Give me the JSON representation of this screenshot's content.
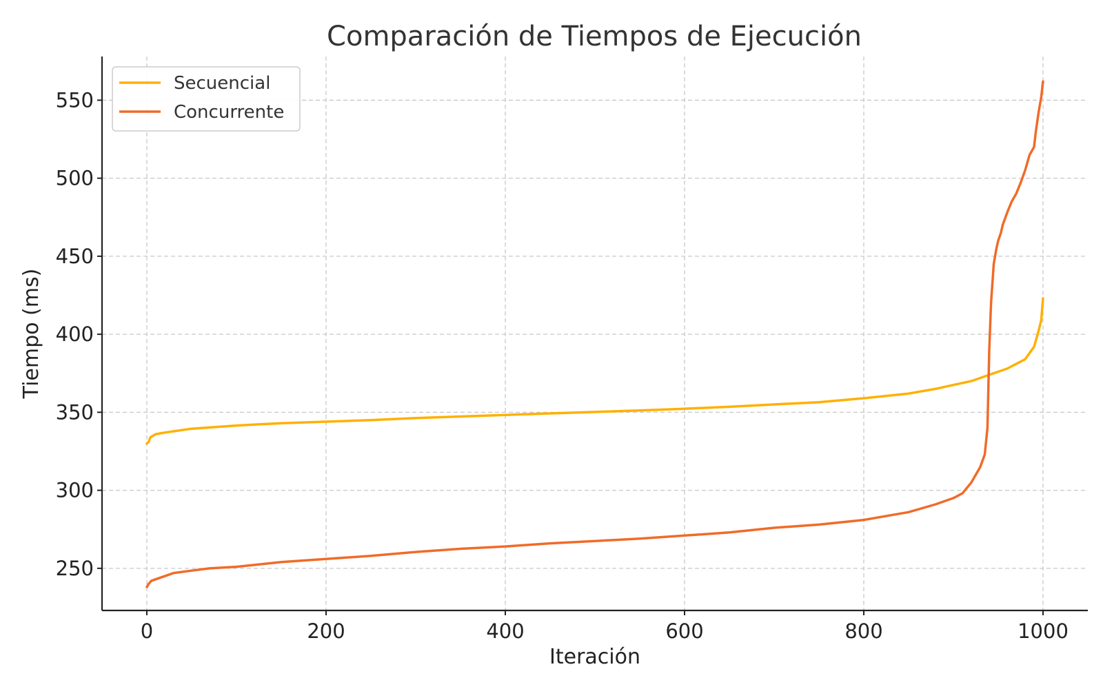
{
  "chart_data": {
    "type": "line",
    "title": "Comparación de Tiempos de Ejecución",
    "xlabel": "Iteración",
    "ylabel": "Tiempo (ms)",
    "xlim": [
      -50,
      1050
    ],
    "ylim": [
      223,
      578
    ],
    "xticks": [
      0,
      200,
      400,
      600,
      800,
      1000
    ],
    "yticks": [
      250,
      300,
      350,
      400,
      450,
      500,
      550
    ],
    "grid": true,
    "legend_position": "top-left",
    "series": [
      {
        "name": "Secuencial",
        "color": "#FFB000",
        "x": [
          0,
          2,
          4,
          10,
          20,
          50,
          100,
          150,
          200,
          250,
          300,
          350,
          400,
          450,
          500,
          550,
          600,
          650,
          700,
          750,
          800,
          850,
          880,
          900,
          920,
          940,
          960,
          970,
          980,
          990,
          995,
          998,
          1000
        ],
        "y": [
          330,
          331,
          334,
          336,
          337,
          339.5,
          341.5,
          343,
          344,
          345,
          346.3,
          347.3,
          348.3,
          349.3,
          350.2,
          351.2,
          352.3,
          353.5,
          355,
          356.5,
          359,
          362,
          365,
          367.5,
          370,
          374,
          378,
          381,
          384,
          392,
          402,
          409,
          423
        ]
      },
      {
        "name": "Concurrente",
        "color": "#F06B28",
        "x": [
          0,
          2,
          5,
          10,
          20,
          30,
          50,
          70,
          100,
          150,
          200,
          250,
          300,
          350,
          400,
          450,
          500,
          550,
          600,
          650,
          700,
          750,
          800,
          850,
          880,
          900,
          910,
          920,
          930,
          935,
          938,
          940,
          942,
          945,
          948,
          950,
          953,
          955,
          960,
          965,
          970,
          975,
          980,
          985,
          990,
          992,
          995,
          998,
          1000
        ],
        "y": [
          238,
          240,
          242,
          243,
          245,
          247,
          248.5,
          250,
          251,
          254,
          256,
          258,
          260.5,
          262.5,
          264,
          266,
          267.5,
          269,
          271,
          273,
          276,
          278,
          281,
          286,
          291,
          295,
          298,
          305,
          315,
          323,
          340,
          390,
          420,
          445,
          455,
          460,
          465,
          470,
          478,
          485,
          490,
          497,
          505,
          515,
          520,
          530,
          542,
          552,
          562
        ]
      }
    ]
  }
}
